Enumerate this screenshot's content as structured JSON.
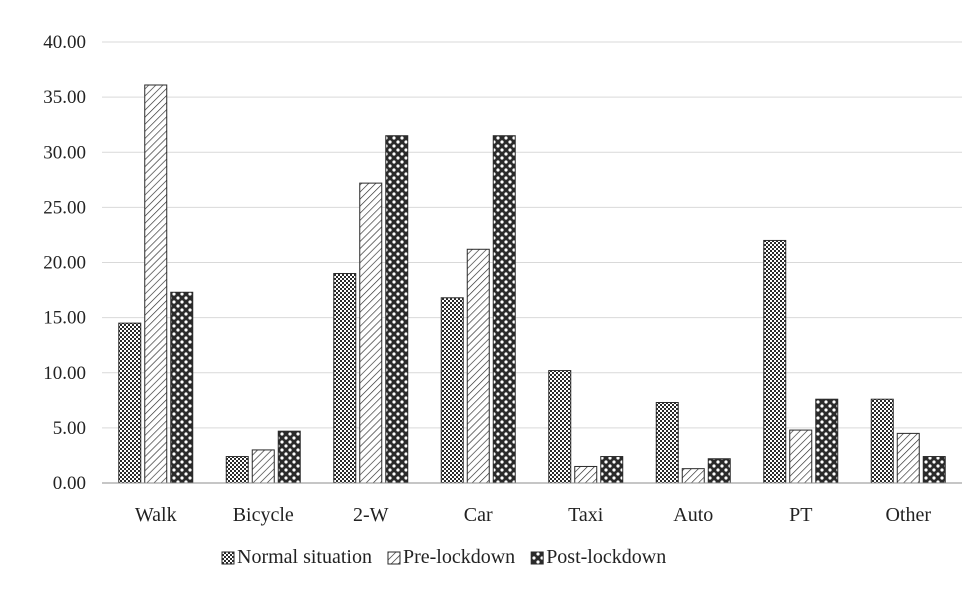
{
  "chart_data": {
    "type": "bar",
    "title": "",
    "xlabel": "",
    "ylabel": "",
    "ylim": [
      0,
      40
    ],
    "y_ticks": [
      "0.00",
      "5.00",
      "10.00",
      "15.00",
      "20.00",
      "25.00",
      "30.00",
      "35.00",
      "40.00"
    ],
    "categories": [
      "Walk",
      "Bicycle",
      "2-W",
      "Car",
      "Taxi",
      "Auto",
      "PT",
      "Other"
    ],
    "series": [
      {
        "name": "Normal situation",
        "values": [
          14.5,
          2.4,
          19.0,
          16.8,
          10.2,
          7.3,
          22.0,
          7.6
        ]
      },
      {
        "name": "Pre-lockdown",
        "values": [
          36.1,
          3.0,
          27.2,
          21.2,
          1.5,
          1.3,
          4.8,
          4.5
        ]
      },
      {
        "name": "Post-lockdown",
        "values": [
          17.3,
          4.7,
          31.5,
          31.5,
          2.4,
          2.2,
          7.6,
          2.4
        ]
      }
    ],
    "legend_position": "bottom",
    "grid": true,
    "colors": {
      "ink": "#2a2a2a",
      "grid": "#d9d9d9",
      "axis": "#8c8c8c",
      "background": "#ffffff"
    }
  }
}
